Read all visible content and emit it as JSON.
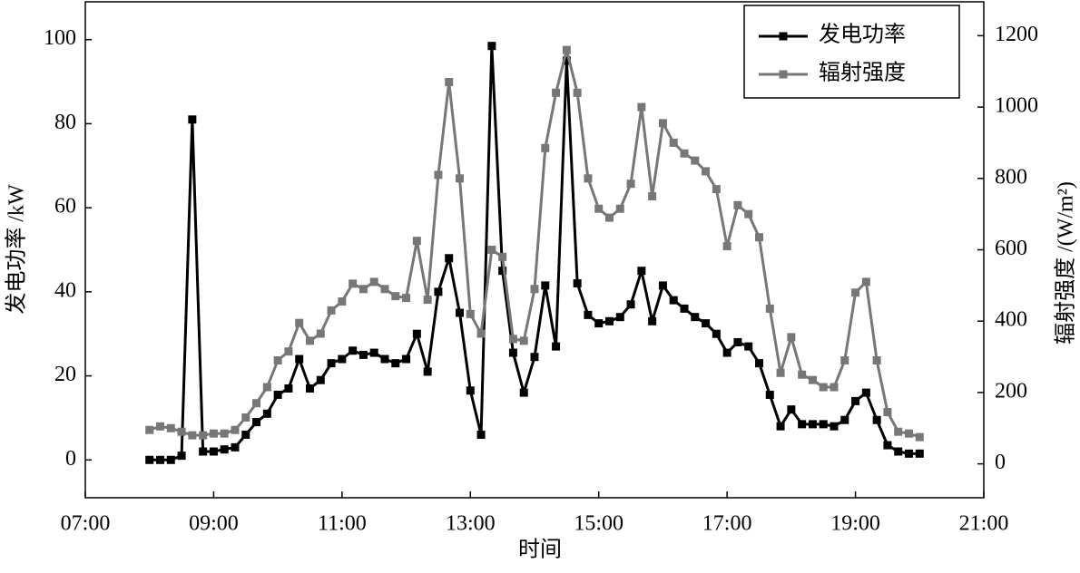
{
  "chart_data": {
    "type": "line",
    "x_label": "时间",
    "y_label": "发电功率 /kW",
    "y2_label": "辐射强度 /(W/m²)",
    "x": [
      "08:00",
      "08:10",
      "08:20",
      "08:30",
      "08:40",
      "08:50",
      "09:00",
      "09:10",
      "09:20",
      "09:30",
      "09:40",
      "09:50",
      "10:00",
      "10:10",
      "10:20",
      "10:30",
      "10:40",
      "10:50",
      "11:00",
      "11:10",
      "11:20",
      "11:30",
      "11:40",
      "11:50",
      "12:00",
      "12:10",
      "12:20",
      "12:30",
      "12:40",
      "12:50",
      "13:00",
      "13:10",
      "13:20",
      "13:30",
      "13:40",
      "13:50",
      "14:00",
      "14:10",
      "14:20",
      "14:30",
      "14:40",
      "14:50",
      "15:00",
      "15:10",
      "15:20",
      "15:30",
      "15:40",
      "15:50",
      "16:00",
      "16:10",
      "16:20",
      "16:30",
      "16:40",
      "16:50",
      "17:00",
      "17:10",
      "17:20",
      "17:30",
      "17:40",
      "17:50",
      "18:00",
      "18:10",
      "18:20",
      "18:30",
      "18:40",
      "18:50",
      "19:00",
      "19:10",
      "19:20",
      "19:30",
      "19:40",
      "19:50",
      "20:00"
    ],
    "series": [
      {
        "name": "发电功率",
        "color": "#000000",
        "axis": "y",
        "values": [
          0,
          0,
          0,
          1,
          81,
          2,
          2,
          2.5,
          3,
          6,
          9,
          11,
          15.5,
          17,
          24,
          17,
          19,
          23,
          24,
          26,
          25,
          25.5,
          24,
          23,
          24,
          30,
          21,
          40,
          48,
          35,
          16.5,
          6,
          98.5,
          45,
          25.5,
          16,
          24.5,
          41.5,
          27,
          95,
          42,
          34.5,
          32.5,
          33,
          34,
          37,
          45,
          33,
          41.5,
          38,
          36,
          34,
          32.5,
          30,
          25.5,
          28,
          27,
          23,
          15.5,
          8,
          12,
          8.5,
          8.5,
          8.5,
          8,
          9.5,
          14,
          16,
          9.5,
          3.5,
          2,
          1.5,
          1.5
        ]
      },
      {
        "name": "辐射强度",
        "color": "#777777",
        "axis": "y2",
        "values": [
          95,
          105,
          100,
          90,
          80,
          80,
          85,
          85,
          95,
          130,
          170,
          215,
          290,
          315,
          395,
          345,
          365,
          430,
          455,
          505,
          490,
          510,
          490,
          470,
          465,
          625,
          460,
          810,
          1070,
          800,
          420,
          365,
          600,
          580,
          350,
          345,
          490,
          885,
          1040,
          1160,
          1040,
          800,
          715,
          690,
          715,
          785,
          1000,
          750,
          955,
          900,
          870,
          850,
          820,
          770,
          610,
          725,
          700,
          635,
          435,
          255,
          355,
          250,
          235,
          215,
          215,
          290,
          480,
          510,
          290,
          145,
          90,
          85,
          75
        ]
      }
    ],
    "xlim": [
      "07:00",
      "21:00"
    ],
    "xticks": [
      "07:00",
      "09:00",
      "11:00",
      "13:00",
      "15:00",
      "17:00",
      "19:00",
      "21:00"
    ],
    "ylim": [
      -9,
      109
    ],
    "yticks": [
      0,
      20,
      40,
      60,
      80,
      100
    ],
    "y2lim": [
      -95,
      1295
    ],
    "y2ticks": [
      0,
      200,
      400,
      600,
      800,
      1000,
      1200
    ],
    "legend": "upper right",
    "grid": false
  }
}
